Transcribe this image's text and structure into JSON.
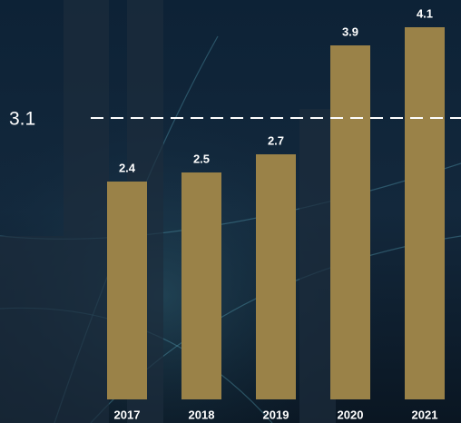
{
  "chart_data": {
    "type": "bar",
    "categories": [
      "2017",
      "2018",
      "2019",
      "2020",
      "2021"
    ],
    "values": [
      2.4,
      2.5,
      2.7,
      3.9,
      4.1
    ],
    "color": "#9a8248",
    "ylim": [
      0,
      4.4
    ],
    "reference_line": 3.1
  }
}
